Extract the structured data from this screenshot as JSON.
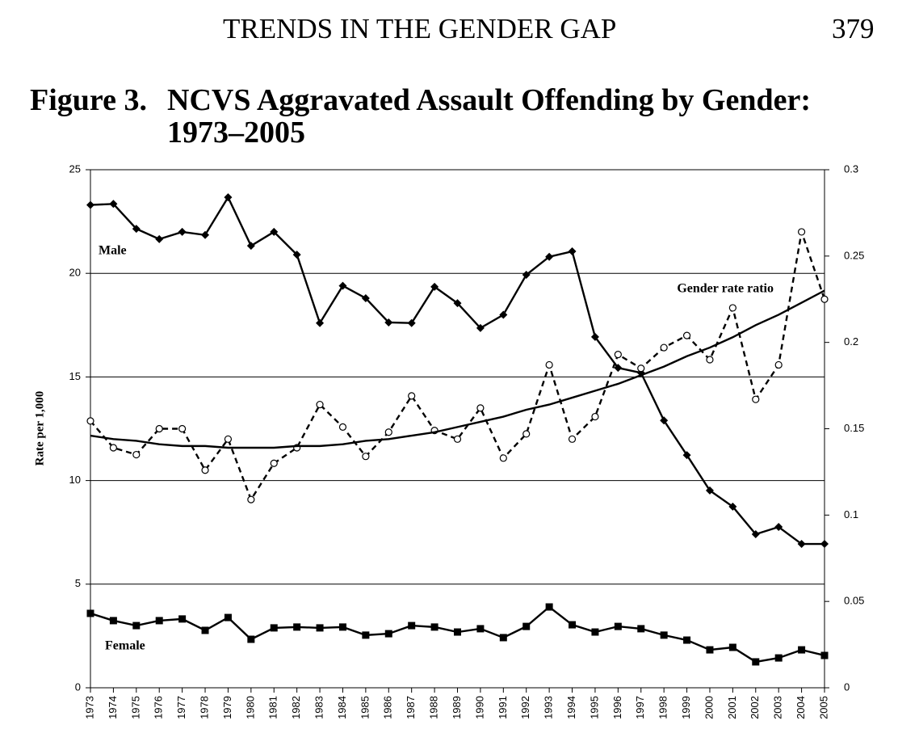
{
  "page_header": {
    "running_title": "TRENDS IN THE GENDER GAP",
    "page_number": "379"
  },
  "chart_data": {
    "type": "line",
    "figure_label": "Figure 3.",
    "title": "NCVS Aggravated Assault Offending by Gender: 1973–2005",
    "y_label": "Rate per 1,000",
    "categories": [
      "1973",
      "1974",
      "1975",
      "1976",
      "1977",
      "1978",
      "1979",
      "1980",
      "1981",
      "1982",
      "1983",
      "1984",
      "1985",
      "1986",
      "1987",
      "1988",
      "1989",
      "1990",
      "1991",
      "1992",
      "1993",
      "1994",
      "1995",
      "1996",
      "1997",
      "1998",
      "1999",
      "2000",
      "2001",
      "2002",
      "2003",
      "2004",
      "2005"
    ],
    "ylim": [
      0,
      25
    ],
    "yticks": [
      0,
      5,
      10,
      15,
      20,
      25
    ],
    "y2lim": [
      0,
      0.3
    ],
    "y2ticks": [
      0,
      0.05,
      0.1,
      0.15,
      0.2,
      0.25,
      0.3
    ],
    "grid": true,
    "series": [
      {
        "name": "Male",
        "color": "#000000",
        "marker": "diamond",
        "dash": false,
        "values": [
          23.3,
          23.35,
          22.15,
          21.65,
          22.0,
          21.85,
          23.67,
          21.33,
          22.0,
          20.9,
          17.6,
          19.4,
          18.8,
          17.63,
          17.6,
          19.35,
          18.56,
          17.36,
          18.0,
          19.93,
          20.8,
          21.06,
          16.93,
          15.44,
          15.2,
          12.9,
          11.23,
          9.52,
          8.74,
          7.41,
          7.76,
          6.94,
          6.94
        ]
      },
      {
        "name": "Female",
        "color": "#000000",
        "marker": "square",
        "dash": false,
        "values": [
          3.59,
          3.24,
          3.0,
          3.24,
          3.32,
          2.77,
          3.39,
          2.34,
          2.89,
          2.93,
          2.89,
          2.93,
          2.54,
          2.61,
          3.0,
          2.93,
          2.69,
          2.85,
          2.42,
          2.96,
          3.9,
          3.04,
          2.69,
          2.96,
          2.85,
          2.54,
          2.3,
          1.83,
          1.95,
          1.25,
          1.44,
          1.83,
          1.56
        ]
      },
      {
        "name": "Gender rate ratio",
        "color": "#000000",
        "marker": "circle",
        "dash": true,
        "axis": "y2",
        "values": [
          0.1545,
          0.139,
          0.135,
          0.15,
          0.15,
          0.126,
          0.144,
          0.109,
          0.13,
          0.139,
          0.164,
          0.151,
          0.134,
          0.148,
          0.169,
          0.149,
          0.144,
          0.162,
          0.133,
          0.147,
          0.187,
          0.144,
          0.157,
          0.193,
          0.185,
          0.197,
          0.204,
          0.19,
          0.22,
          0.167,
          0.187,
          0.264,
          0.225
        ]
      },
      {
        "color": "#000000",
        "marker": "none",
        "dash": false,
        "axis": "y2",
        "values": [
          0.146,
          0.144,
          0.143,
          0.141,
          0.14,
          0.14,
          0.139,
          0.139,
          0.139,
          0.14,
          0.14,
          0.141,
          0.143,
          0.144,
          0.146,
          0.148,
          0.151,
          0.154,
          0.157,
          0.161,
          0.164,
          0.168,
          0.172,
          0.176,
          0.181,
          0.186,
          0.192,
          0.197,
          0.203,
          0.21,
          0.216,
          0.223,
          0.23
        ]
      }
    ]
  }
}
